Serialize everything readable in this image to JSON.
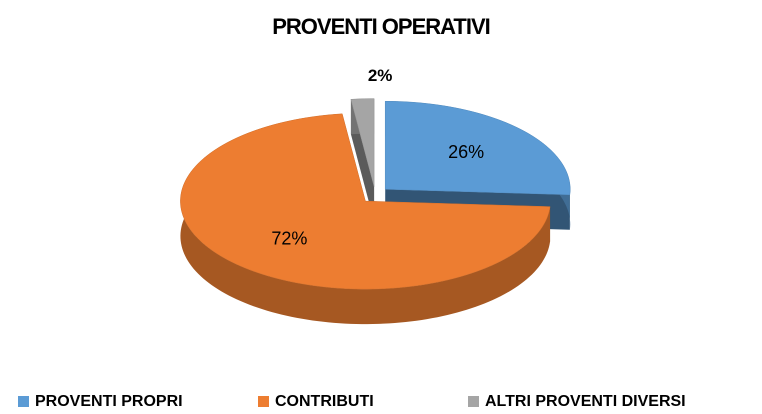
{
  "chart_data": {
    "type": "pie3d",
    "title": "PROVENTI OPERATIVI",
    "categories": [
      "PROVENTI PROPRI",
      "CONTRIBUTI",
      "ALTRI PROVENTI DIVERSI"
    ],
    "values": [
      26,
      72,
      2
    ],
    "value_labels": [
      "26%",
      "72%",
      "2%"
    ],
    "colors": [
      "#5b9bd5",
      "#ed7d31",
      "#a5a5a5"
    ],
    "legend": "bottom"
  }
}
